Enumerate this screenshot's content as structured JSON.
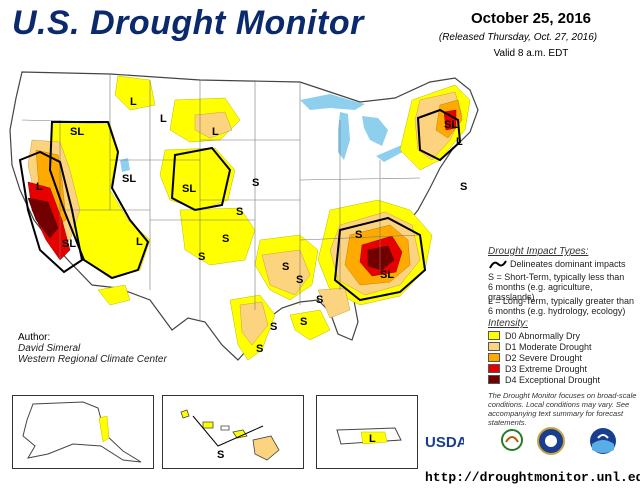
{
  "header": {
    "title": "U.S. Drought Monitor",
    "date": "October 25, 2016",
    "released": "(Released Thursday, Oct. 27, 2016)",
    "valid": "Valid 8 a.m. EDT"
  },
  "author": {
    "label": "Author:",
    "name": "David Simeral",
    "org": "Western Regional Climate Center"
  },
  "impact_legend": {
    "title": "Drought Impact Types:",
    "delineates": "Delineates dominant impacts",
    "short_term_line1": "S = Short-Term, typically less than",
    "short_term_line2": "6 months (e.g. agriculture, grasslands)",
    "long_term_line1": "L = Long-Term, typically greater than",
    "long_term_line2": "6 months (e.g. hydrology, ecology)"
  },
  "intensity_legend": {
    "title": "Intensity:",
    "items": [
      {
        "label": "D0 Abnormally Dry",
        "color": "#ffff00"
      },
      {
        "label": "D1 Moderate Drought",
        "color": "#fcd37f"
      },
      {
        "label": "D2 Severe Drought",
        "color": "#ffaa00"
      },
      {
        "label": "D3 Extreme Drought",
        "color": "#e60000"
      },
      {
        "label": "D4 Exceptional Drought",
        "color": "#730000"
      }
    ]
  },
  "footnote": "The Drought Monitor focuses on broad-scale conditions. Local conditions may vary. See accompanying text summary for forecast statements.",
  "url": "http://droughtmonitor.unl.edu/",
  "map_labels": {
    "SL": "SL",
    "S": "S",
    "L": "L"
  },
  "logos": {
    "usda": "USDA"
  },
  "colors": {
    "water": "#8ecfee",
    "land": "#ffffff",
    "border": "#444444",
    "impact_line": "#000000",
    "title_blue": "#0b2a6e"
  }
}
